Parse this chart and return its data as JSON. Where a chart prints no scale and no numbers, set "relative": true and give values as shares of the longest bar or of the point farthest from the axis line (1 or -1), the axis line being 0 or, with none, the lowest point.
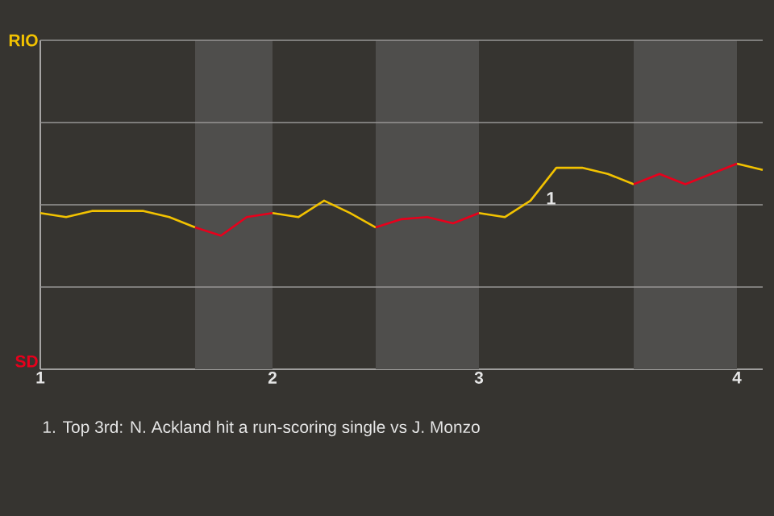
{
  "chart_data": {
    "type": "line",
    "categories": [
      "1",
      null,
      null,
      null,
      null,
      null,
      null,
      null,
      null,
      "2",
      null,
      null,
      null,
      null,
      null,
      null,
      null,
      "3",
      null,
      null,
      null,
      null,
      null,
      null,
      null,
      null,
      null,
      "4",
      null
    ],
    "relative": true,
    "series": [
      {
        "color": "#f2c200",
        "values": [
          0.76,
          0.74,
          0.77,
          0.77,
          0.77,
          0.74,
          0.69,
          null,
          null,
          0.76,
          0.74,
          0.82,
          0.76,
          0.69,
          null,
          null,
          null,
          0.76,
          0.74,
          0.82,
          0.98,
          0.98,
          0.95,
          0.9,
          null,
          null,
          null,
          1,
          0.97
        ]
      },
      {
        "color": "#e8001c",
        "values": [
          null,
          null,
          null,
          null,
          null,
          null,
          0.69,
          0.65,
          0.74,
          0.76,
          null,
          null,
          null,
          0.69,
          0.73,
          0.74,
          0.71,
          0.76,
          null,
          null,
          null,
          null,
          null,
          0.9,
          0.95,
          0.9,
          0.95,
          1,
          null
        ]
      }
    ],
    "ref_lines": [
      {
        "axis": "y",
        "value": 0.4,
        "color": "#979694"
      },
      {
        "axis": "y",
        "value": 0.8,
        "color": "#979694"
      },
      {
        "axis": "y",
        "value": 1.2,
        "color": "#979694"
      }
    ],
    "legend": false,
    "marker": "none",
    "line_style": "solid",
    "annotations": [
      "RIO",
      "SD",
      "1",
      "1. Top 3rd: N. Ackland hit a run-scoring single vs J. Monzo"
    ]
  }
}
